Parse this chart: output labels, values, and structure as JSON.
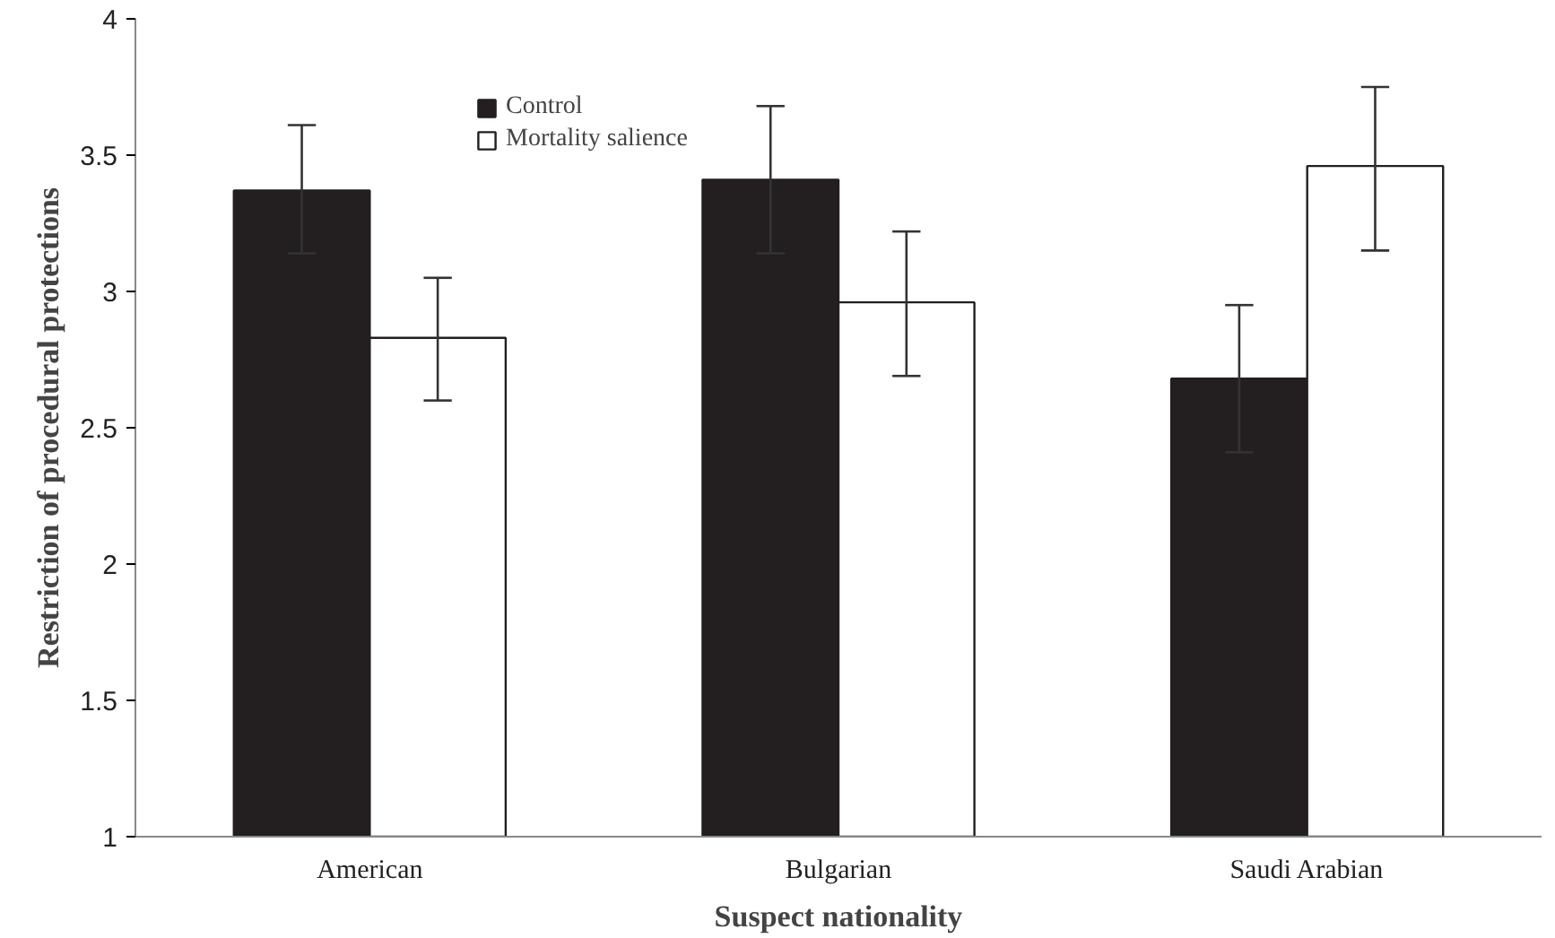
{
  "chart_data": {
    "type": "bar",
    "xlabel": "Suspect nationality",
    "ylabel": "Restriction of procedural protections",
    "categories": [
      "American",
      "Bulgarian",
      "Saudi Arabian"
    ],
    "series": [
      {
        "name": "Control",
        "color": "#231f20",
        "values": [
          3.37,
          3.41,
          2.68
        ],
        "errors": [
          [
            3.14,
            3.61
          ],
          [
            3.14,
            3.68
          ],
          [
            2.41,
            2.95
          ]
        ]
      },
      {
        "name": "Mortality salience",
        "color": "#ffffff",
        "values": [
          2.83,
          2.96,
          3.46
        ],
        "errors": [
          [
            2.6,
            3.05
          ],
          [
            2.69,
            3.22
          ],
          [
            3.15,
            3.75
          ]
        ]
      }
    ],
    "ylim": [
      1,
      4
    ],
    "yticks": [
      1,
      1.5,
      2,
      2.5,
      3,
      3.5,
      4
    ],
    "grid": false,
    "legend": "top left"
  }
}
